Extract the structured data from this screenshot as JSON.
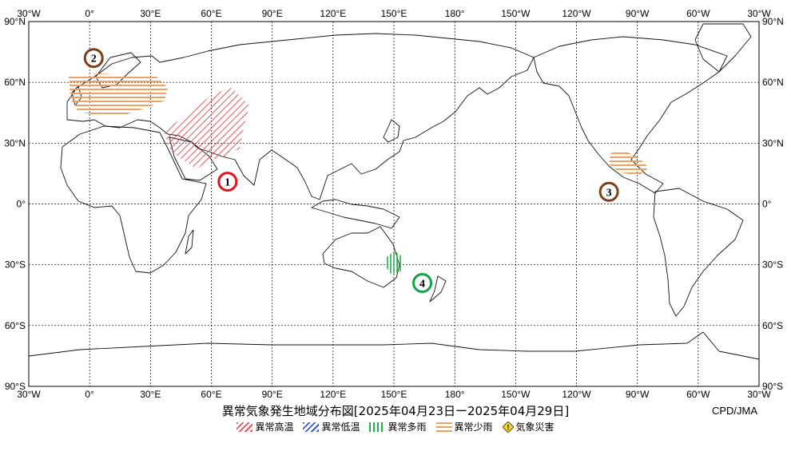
{
  "map": {
    "title": "異常気象発生地域分布図[2025年04月23日ー2025年04月29日]",
    "credit": "CPD/JMA",
    "lon_labels": [
      "30°W",
      "0°",
      "30°E",
      "60°E",
      "90°E",
      "120°E",
      "150°E",
      "180°",
      "150°W",
      "120°W",
      "90°W",
      "60°W",
      "30°W"
    ],
    "lat_labels": [
      "90°N",
      "60°N",
      "30°N",
      "0°",
      "30°S",
      "60°S",
      "90°S"
    ],
    "markers": [
      {
        "id": "1",
        "color": "#e8101a",
        "lon": 68,
        "lat": 11
      },
      {
        "id": "2",
        "color": "#7b3f1a",
        "lon": 2,
        "lat": 72
      },
      {
        "id": "3",
        "color": "#7b3f1a",
        "lon": -104,
        "lat": 6
      },
      {
        "id": "4",
        "color": "#17a04a",
        "lon": 164,
        "lat": -39
      }
    ],
    "colors": {
      "hot": "#e8505b",
      "cold": "#3b5bd6",
      "wet": "#22b04b",
      "dry": "#f0a060",
      "disaster": "#f2d21b"
    }
  },
  "legend": {
    "hot": "異常高温",
    "cold": "異常低温",
    "wet": "異常多雨",
    "dry": "異常少雨",
    "disaster": "気象災害",
    "disaster_icon": "!"
  }
}
